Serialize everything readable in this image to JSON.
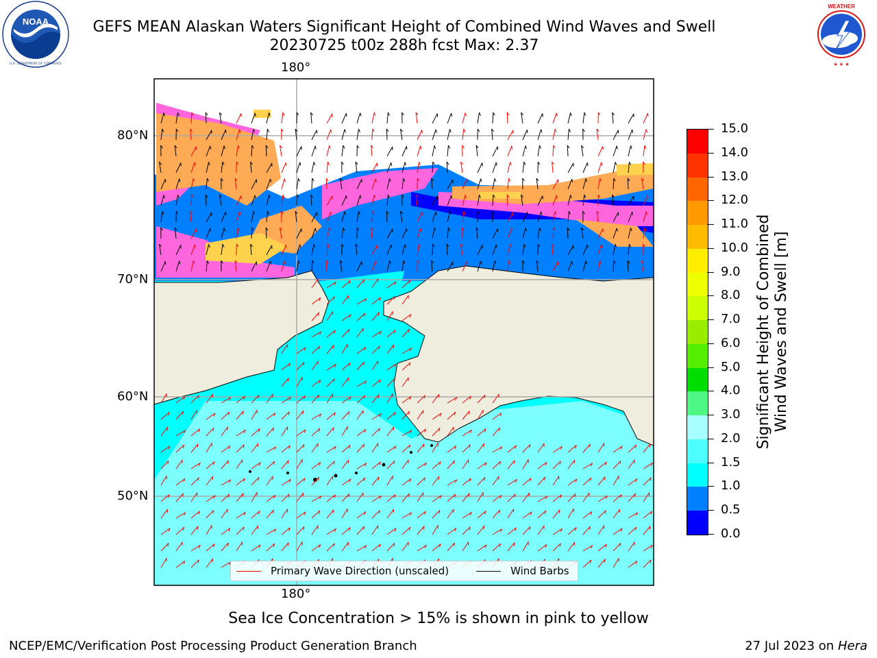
{
  "title": {
    "line1": "GEFS MEAN Alaskan Waters Significant Height of Combined Wind Waves and Swell",
    "line2": "20230725 t00z 288h fcst   Max: 2.37"
  },
  "logos": {
    "left": {
      "icon": "noaa-logo-icon",
      "text": "NOAA",
      "ring_text": "NATIONAL OCEANIC AND ATMOSPHERIC ADMINISTRATION · U.S. DEPARTMENT OF COMMERCE"
    },
    "right": {
      "icon": "nws-logo-icon",
      "ring_text": "NATIONAL WEATHER SERVICE"
    }
  },
  "map": {
    "lat_labels": [
      "80°N",
      "70°N",
      "60°N",
      "50°N"
    ],
    "lon_label_top": "180°",
    "lon_label_bottom": "180°",
    "legend": {
      "wave_label": "Primary Wave Direction (unscaled)",
      "wave_color": "#ff0000",
      "wind_label": "Wind Barbs",
      "wind_color": "#000000"
    },
    "colors": {
      "land": "#efedde",
      "ocean_open": "#00ffff",
      "ocean_light": "#a8ffff",
      "ocean_mid": "#4dfdff",
      "low_wave": "#0080ff",
      "very_low": "#0000ff",
      "ice_pink": "#ff66dd",
      "ice_orange": "#ffaa55",
      "ice_yellow": "#ffd24d"
    }
  },
  "colorbar": {
    "title": [
      "Significant Height of Combined",
      "Wind Waves and Swell [m]"
    ],
    "ticks": [
      "0.0",
      "0.5",
      "1.0",
      "1.5",
      "2.0",
      "3.0",
      "4.0",
      "5.0",
      "6.0",
      "7.0",
      "8.0",
      "9.0",
      "10.0",
      "11.0",
      "12.0",
      "13.0",
      "14.0",
      "15.0"
    ],
    "colors": [
      "#0000ff",
      "#0080ff",
      "#00ffff",
      "#4dfdff",
      "#a8ffff",
      "#4ff785",
      "#00dd00",
      "#55ee00",
      "#99ee00",
      "#ccff00",
      "#eeff00",
      "#ffee00",
      "#ffbb00",
      "#ff9900",
      "#ff6600",
      "#ff3300",
      "#ff0000"
    ]
  },
  "note": "Sea Ice Concentration > 15% is shown in pink to yellow",
  "footer": {
    "left": "NCEP/EMC/Verification Post Processing Product Generation Branch",
    "right_prefix": "27 Jul 2023 on ",
    "right_host": "Hera"
  }
}
